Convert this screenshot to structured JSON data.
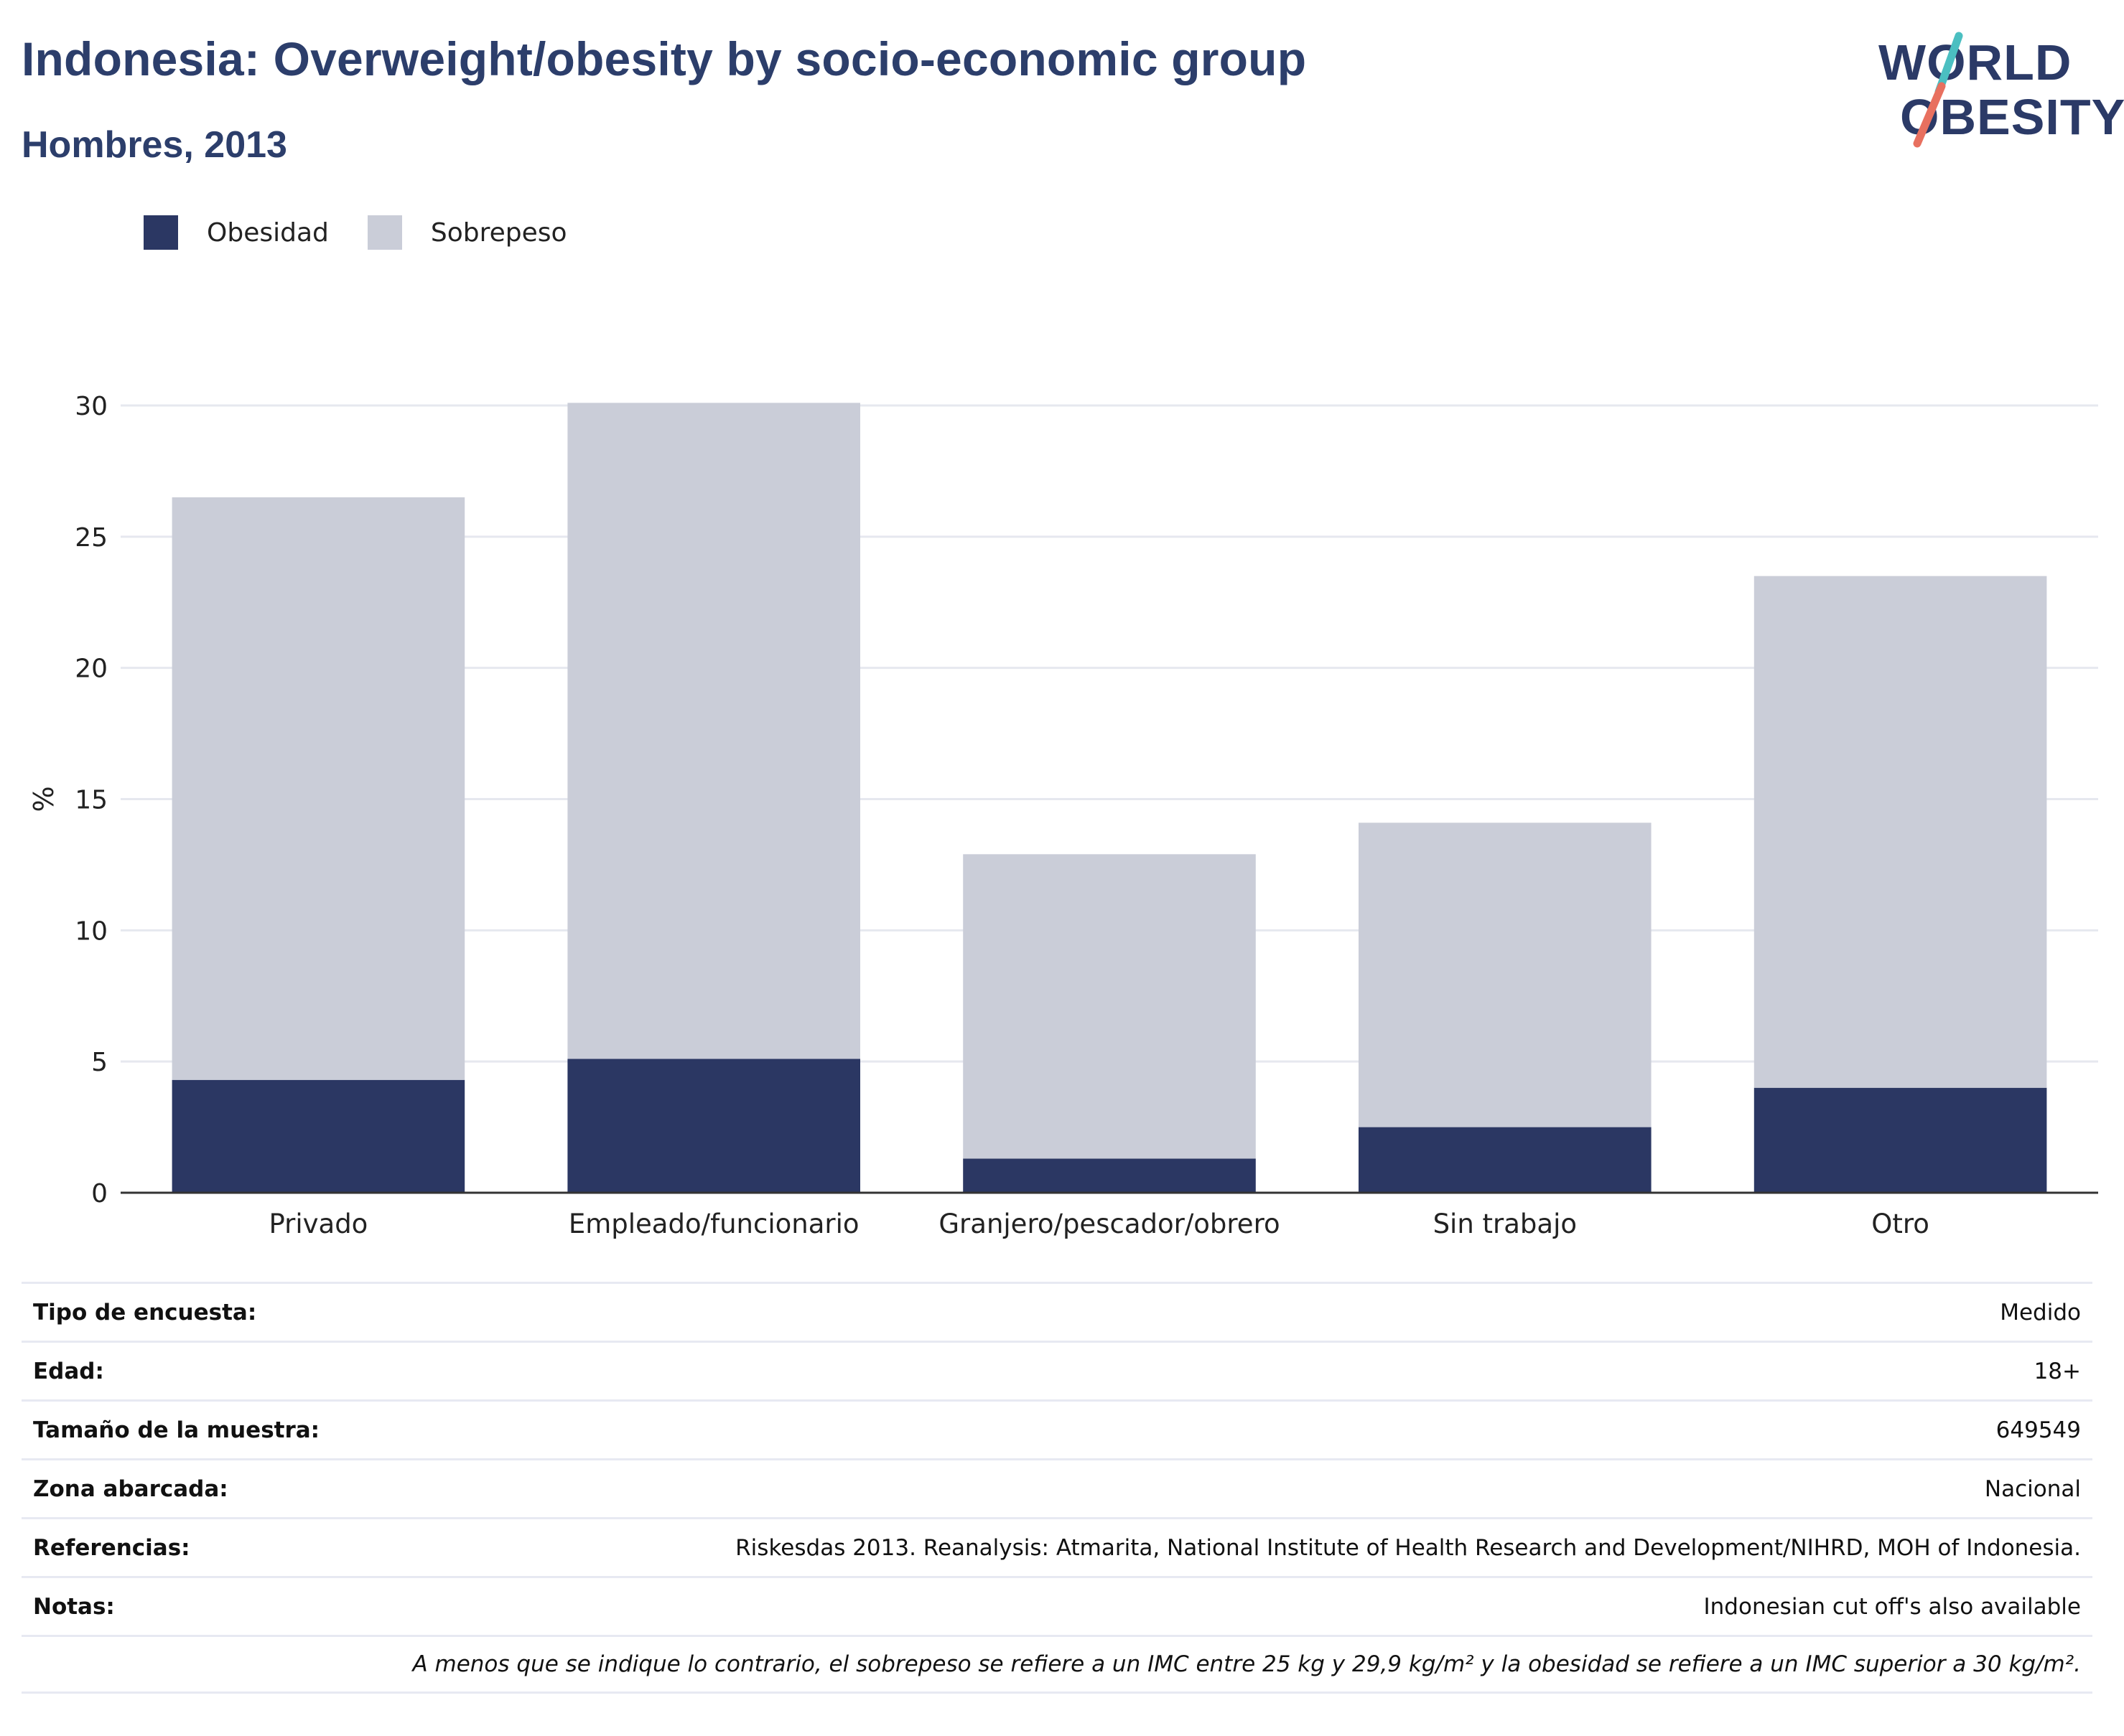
{
  "header": {
    "title": "Indonesia: Overweight/obesity by socio-economic group",
    "subtitle": "Hombres, 2013"
  },
  "logo": {
    "line1": "WORLD",
    "line2": "OBESITY",
    "slash_colors": [
      "#4bbfc1",
      "#e8705f"
    ]
  },
  "colors": {
    "obesidad": "#2b3763",
    "sobrepeso": "#cacdd8",
    "title": "#2c3e6b",
    "grid": "#e6e8ef"
  },
  "chart_data": {
    "type": "bar",
    "stacked": true,
    "ylabel": "%",
    "ylim": [
      0,
      30
    ],
    "yticks": [
      0,
      5,
      10,
      15,
      20,
      25,
      30
    ],
    "grid": true,
    "legend_position": "top-left",
    "categories": [
      "Privado",
      "Empleado/funcionario",
      "Granjero/pescador/obrero",
      "Sin trabajo",
      "Otro"
    ],
    "series": [
      {
        "name": "Obesidad",
        "values": [
          4.3,
          5.1,
          1.3,
          2.5,
          4.0
        ]
      },
      {
        "name": "Sobrepeso",
        "values": [
          22.2,
          25.0,
          11.6,
          11.6,
          19.5
        ]
      }
    ]
  },
  "meta": [
    {
      "key": "Tipo de encuesta:",
      "value": "Medido"
    },
    {
      "key": "Edad:",
      "value": "18+"
    },
    {
      "key": "Tamaño de la muestra:",
      "value": "649549"
    },
    {
      "key": "Zona abarcada:",
      "value": "Nacional"
    },
    {
      "key": "Referencias:",
      "value": "Riskesdas 2013. Reanalysis: Atmarita, National Institute of Health Research and Development/NIHRD, MOH of Indonesia."
    },
    {
      "key": "Notas:",
      "value": "Indonesian cut off's also available"
    }
  ],
  "footnote": "A menos que se indique lo contrario, el sobrepeso se refiere a un IMC entre 25 kg y 29,9 kg/m² y la obesidad se refiere a un IMC superior a 30 kg/m²."
}
